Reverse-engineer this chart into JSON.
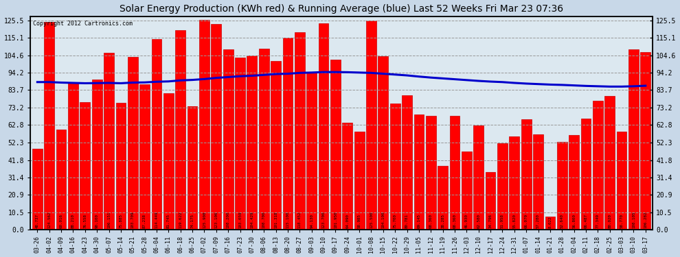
{
  "title": "Solar Energy Production (KWh red) & Running Average (blue) Last 52 Weeks Fri Mar 23 07:36",
  "copyright": "Copyright 2012 Cartronics.com",
  "bar_color": "#ff0000",
  "avg_line_color": "#0000cc",
  "background_color": "#c8d8e8",
  "plot_bg_color": "#dce8f0",
  "grid_color": "#aaaaaa",
  "categories": [
    "03-26",
    "04-02",
    "04-09",
    "04-16",
    "04-23",
    "04-30",
    "05-07",
    "05-14",
    "05-21",
    "05-28",
    "06-04",
    "06-11",
    "06-18",
    "06-25",
    "07-02",
    "07-09",
    "07-16",
    "07-23",
    "07-30",
    "08-06",
    "08-13",
    "08-20",
    "08-27",
    "09-03",
    "09-10",
    "09-17",
    "09-24",
    "10-01",
    "10-08",
    "10-15",
    "10-22",
    "10-29",
    "11-05",
    "11-12",
    "11-19",
    "11-26",
    "12-03",
    "12-10",
    "12-17",
    "12-24",
    "12-31",
    "01-07",
    "01-14",
    "01-21",
    "01-28",
    "02-04",
    "02-11",
    "02-18",
    "02-25",
    "03-03",
    "03-10",
    "03-17"
  ],
  "values": [
    48.737,
    124.562,
    60.016,
    88.21,
    76.558,
    90.1005,
    106.151,
    75.885,
    103.709,
    87.238,
    114.449,
    81.745,
    119.622,
    74.175,
    125.908,
    123.106,
    108.2,
    103.059,
    104.429,
    108.7,
    101.318,
    115.1,
    118.452,
    94.13,
    123.7,
    101.95,
    64.09,
    58.985,
    125.5,
    104.1,
    75.7,
    80.781,
    69.145,
    68.36,
    38.285,
    68.36,
    46.93,
    62.58,
    34.796,
    51.958,
    55.82,
    66.079,
    57.28,
    8.022,
    52.64,
    56.8,
    66.487,
    77.349,
    80.02,
    58.77,
    108.105,
    106.282
  ],
  "running_avg": [
    88.5,
    88.5,
    88.2,
    88.0,
    87.8,
    87.9,
    88.0,
    87.8,
    88.2,
    88.3,
    88.7,
    88.9,
    89.5,
    89.8,
    90.3,
    91.0,
    91.5,
    92.0,
    92.3,
    92.8,
    93.3,
    93.5,
    94.0,
    94.2,
    94.5,
    94.5,
    94.4,
    94.2,
    94.0,
    93.5,
    93.0,
    92.5,
    91.8,
    91.2,
    90.7,
    90.2,
    89.7,
    89.2,
    88.8,
    88.5,
    88.0,
    87.6,
    87.3,
    87.0,
    86.8,
    86.5,
    86.2,
    86.0,
    85.8,
    85.8,
    86.0,
    86.3
  ],
  "yticks": [
    0.0,
    10.5,
    20.9,
    31.4,
    41.8,
    52.3,
    62.8,
    73.2,
    83.7,
    94.2,
    104.6,
    115.1,
    125.5
  ],
  "ylim": [
    0,
    128
  ],
  "title_fontsize": 10,
  "bar_width": 0.85
}
